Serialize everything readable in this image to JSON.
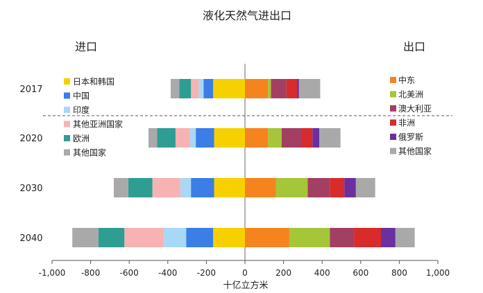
{
  "chart_data": {
    "type": "bar",
    "orientation": "horizontal",
    "stacked": true,
    "title": "液化天然气进出口",
    "xlabel": "十亿立方米",
    "left_label": "进口",
    "right_label": "出口",
    "xlim": [
      -1000,
      1000
    ],
    "xticks": [
      -1000,
      -800,
      -600,
      -400,
      -200,
      0,
      200,
      400,
      600,
      800,
      1000
    ],
    "xtick_labels": [
      "-1,000",
      "-800",
      "-600",
      "-400",
      "-200",
      "0",
      "200",
      "400",
      "600",
      "800",
      "1,000"
    ],
    "categories": [
      "2017",
      "2020",
      "2030",
      "2040"
    ],
    "divider_after": "2017",
    "import_series": [
      {
        "name": "日本和韩国",
        "color": "#f7d000",
        "values": [
          -165,
          -160,
          -160,
          -165
        ]
      },
      {
        "name": "中国",
        "color": "#3a7ee6",
        "values": [
          -50,
          -95,
          -120,
          -140
        ]
      },
      {
        "name": "印度",
        "color": "#a8d8f5",
        "values": [
          -25,
          -30,
          -55,
          -115
        ]
      },
      {
        "name": "其他亚洲国家",
        "color": "#f7b3b3",
        "values": [
          -40,
          -75,
          -145,
          -205
        ]
      },
      {
        "name": "欧洲",
        "color": "#2e9e93",
        "values": [
          -60,
          -95,
          -125,
          -135
        ]
      },
      {
        "name": "其他国家",
        "color": "#a9a9a9",
        "values": [
          -45,
          -45,
          -75,
          -135
        ]
      }
    ],
    "export_series": [
      {
        "name": "中东",
        "color": "#f5841f",
        "values": [
          120,
          120,
          160,
          230
        ]
      },
      {
        "name": "北美洲",
        "color": "#a5c639",
        "values": [
          15,
          70,
          165,
          210
        ]
      },
      {
        "name": "澳大利亚",
        "color": "#a33f63",
        "values": [
          80,
          105,
          115,
          125
        ]
      },
      {
        "name": "非洲",
        "color": "#d82b2b",
        "values": [
          55,
          55,
          75,
          140
        ]
      },
      {
        "name": "俄罗斯",
        "color": "#6b2fa0",
        "values": [
          10,
          35,
          60,
          75
        ]
      },
      {
        "name": "其他国家",
        "color": "#a9a9a9",
        "values": [
          110,
          110,
          100,
          100
        ]
      }
    ]
  }
}
